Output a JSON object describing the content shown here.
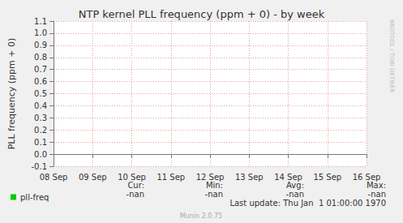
{
  "chart_data": {
    "type": "line",
    "title": "NTP kernel PLL frequency (ppm + 0) - by week",
    "y_label": "PLL frequency (ppm + 0)",
    "categories": [
      "08 Sep",
      "09 Sep",
      "10 Sep",
      "11 Sep",
      "12 Sep",
      "13 Sep",
      "14 Sep",
      "15 Sep",
      "16 Sep"
    ],
    "series": [
      {
        "name": "pll-freq",
        "color": "#00cc00",
        "values": [
          null,
          null,
          null,
          null,
          null,
          null,
          null,
          null,
          null
        ]
      }
    ],
    "ylim": [
      -0.1,
      1.1
    ],
    "yticks": [
      -0.1,
      {
        "value": 0,
        "label": "0.0"
      },
      0.1,
      0.2,
      0.3,
      0.4,
      0.5,
      0.6,
      0.7,
      0.8,
      0.9,
      {
        "value": 1,
        "label": "1.0"
      },
      1.1
    ],
    "grid": true,
    "legend": "bottom-left",
    "stats": {
      "columns": [
        "Cur:",
        "Min:",
        "Avg:",
        "Max:"
      ],
      "values": [
        "-nan",
        "-nan",
        "-nan",
        "-nan"
      ]
    },
    "annotations": [
      "Last update: Thu Jan  1 01:00:00 1970",
      "Munin 2.0.75",
      "RRDTOOL / TOBI OETIKER"
    ]
  }
}
